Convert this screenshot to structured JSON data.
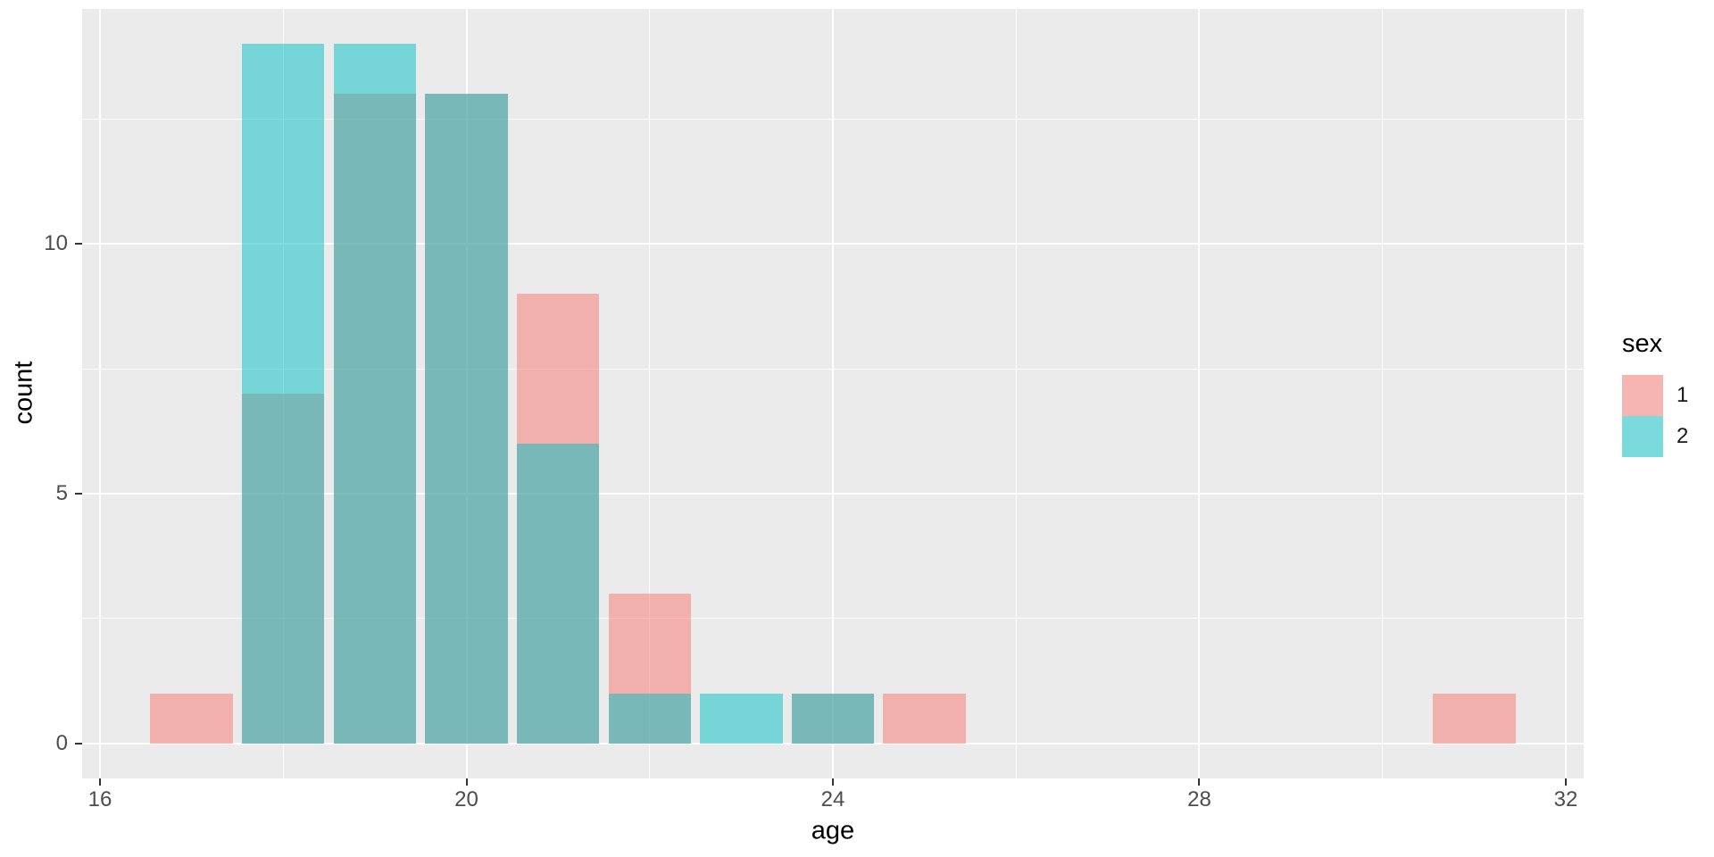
{
  "figure": {
    "background": "#FFFFFF",
    "panel_background": "#EBEBEB",
    "grid_color": "#FFFFFF",
    "tick_label_color": "#4D4D4D",
    "tick_mark_color": "#333333",
    "axis_title_color": "#000000"
  },
  "chart_data": {
    "type": "bar",
    "subtype": "overlaid-histogram",
    "title": "",
    "xlabel": "age",
    "ylabel": "count",
    "x": [
      17,
      18,
      19,
      20,
      21,
      22,
      23,
      24,
      25,
      31
    ],
    "series": [
      {
        "name": "1",
        "color": "#F8766D",
        "fill_alpha": 0.5,
        "values": [
          1,
          7,
          13,
          13,
          9,
          3,
          0,
          1,
          1,
          1
        ]
      },
      {
        "name": "2",
        "color": "#00BFC4",
        "fill_alpha": 0.5,
        "values": [
          0,
          14,
          14,
          13,
          6,
          1,
          1,
          1,
          0,
          0
        ]
      }
    ],
    "bar_width": 0.9,
    "position": "identity",
    "xlim": [
      15.805,
      32.195
    ],
    "ylim": [
      -0.7,
      14.7
    ],
    "x_major_ticks": [
      16,
      20,
      24,
      28,
      32
    ],
    "x_minor_ticks": [
      18,
      22,
      26,
      30
    ],
    "y_major_ticks": [
      0,
      5,
      10
    ],
    "y_minor_ticks": [
      2.5,
      7.5,
      12.5
    ],
    "grid": true,
    "legend": {
      "title": "sex",
      "position": "right",
      "key_background": "#F5F5F5",
      "entries": [
        {
          "label": "1",
          "color": "#F8766D"
        },
        {
          "label": "2",
          "color": "#00BFC4"
        }
      ]
    }
  }
}
